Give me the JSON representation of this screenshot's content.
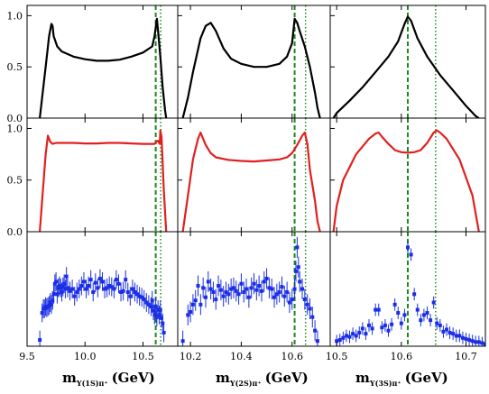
{
  "chart_data": {
    "type": "line",
    "grid": false,
    "yticks": [
      "0.0",
      "0.5",
      "1.0"
    ],
    "x_axis_labels": [
      {
        "main": "m",
        "sub": "Υ(1S)π⁺",
        "unit": "(GeV)"
      },
      {
        "main": "m",
        "sub": "Υ(2S)π⁺",
        "unit": "(GeV)"
      },
      {
        "main": "m",
        "sub": "Υ(3S)π⁺",
        "unit": "(GeV)"
      }
    ],
    "columns": [
      {
        "xlim": [
          9.5,
          10.8
        ],
        "xticks": [
          9.5,
          10.0,
          10.5
        ],
        "xtick_labels": [
          "9.5",
          "10.0",
          "10.5"
        ],
        "vlines": [
          {
            "x": 10.61,
            "style": "dashed"
          },
          {
            "x": 10.653,
            "style": "dotted"
          }
        ]
      },
      {
        "xlim": [
          10.15,
          10.75
        ],
        "xticks": [
          10.2,
          10.4,
          10.6
        ],
        "xtick_labels": [
          "10.2",
          "10.4",
          "10.6"
        ],
        "vlines": [
          {
            "x": 10.61,
            "style": "dashed"
          },
          {
            "x": 10.653,
            "style": "dotted"
          }
        ]
      },
      {
        "xlim": [
          10.49,
          10.73
        ],
        "xticks": [
          10.5,
          10.6,
          10.7
        ],
        "xtick_labels": [
          "10.5",
          "10.6",
          "10.7"
        ],
        "vlines": [
          {
            "x": 10.61,
            "style": "dashed"
          },
          {
            "x": 10.653,
            "style": "dotted"
          }
        ]
      }
    ],
    "rows": [
      {
        "color": "#000000",
        "ylim": [
          0,
          1.1
        ],
        "curves": [
          {
            "x": [
              9.61,
              9.63,
              9.66,
              9.69,
              9.71,
              9.72,
              9.73,
              9.76,
              9.8,
              9.9,
              10.0,
              10.1,
              10.2,
              10.3,
              10.4,
              10.5,
              10.58,
              10.6,
              10.62,
              10.63,
              10.65,
              10.67,
              10.69,
              10.7
            ],
            "y": [
              0.0,
              0.2,
              0.5,
              0.8,
              0.92,
              0.9,
              0.8,
              0.7,
              0.65,
              0.6,
              0.575,
              0.56,
              0.56,
              0.57,
              0.6,
              0.64,
              0.7,
              0.8,
              0.97,
              0.85,
              0.6,
              0.3,
              0.08,
              0.0
            ]
          },
          {
            "x": [
              10.17,
              10.19,
              10.21,
              10.24,
              10.26,
              10.28,
              10.3,
              10.33,
              10.36,
              10.4,
              10.45,
              10.5,
              10.55,
              10.58,
              10.6,
              10.61,
              10.62,
              10.63,
              10.65,
              10.67,
              10.69,
              10.7,
              10.71
            ],
            "y": [
              0.0,
              0.2,
              0.45,
              0.78,
              0.9,
              0.93,
              0.85,
              0.68,
              0.58,
              0.53,
              0.5,
              0.5,
              0.53,
              0.6,
              0.73,
              0.97,
              0.93,
              0.85,
              0.7,
              0.5,
              0.25,
              0.1,
              0.0
            ]
          },
          {
            "x": [
              10.495,
              10.5,
              10.52,
              10.54,
              10.56,
              10.58,
              10.595,
              10.605,
              10.61,
              10.615,
              10.625,
              10.64,
              10.66,
              10.68,
              10.7,
              10.715,
              10.72
            ],
            "y": [
              0.0,
              0.05,
              0.17,
              0.3,
              0.45,
              0.6,
              0.75,
              0.92,
              0.99,
              0.95,
              0.78,
              0.6,
              0.42,
              0.27,
              0.12,
              0.02,
              0.0
            ]
          }
        ]
      },
      {
        "color": "#e02020",
        "ylim": [
          0,
          1.1
        ],
        "curves": [
          {
            "x": [
              9.61,
              9.63,
              9.66,
              9.68,
              9.7,
              9.72,
              9.75,
              9.8,
              9.9,
              10.0,
              10.1,
              10.2,
              10.3,
              10.4,
              10.5,
              10.58,
              10.6,
              10.615,
              10.63,
              10.645,
              10.65,
              10.66,
              10.68,
              10.7
            ],
            "y": [
              0.0,
              0.3,
              0.75,
              0.93,
              0.87,
              0.85,
              0.86,
              0.86,
              0.86,
              0.855,
              0.855,
              0.86,
              0.86,
              0.855,
              0.85,
              0.85,
              0.85,
              0.87,
              0.88,
              0.85,
              0.98,
              0.92,
              0.4,
              0.0
            ]
          },
          {
            "x": [
              10.17,
              10.19,
              10.21,
              10.23,
              10.24,
              10.26,
              10.28,
              10.3,
              10.35,
              10.4,
              10.45,
              10.5,
              10.55,
              10.58,
              10.6,
              10.62,
              10.64,
              10.65,
              10.66,
              10.67,
              10.69,
              10.7,
              10.71
            ],
            "y": [
              0.0,
              0.35,
              0.7,
              0.9,
              0.96,
              0.84,
              0.76,
              0.72,
              0.695,
              0.685,
              0.68,
              0.69,
              0.7,
              0.72,
              0.76,
              0.84,
              0.93,
              0.96,
              0.85,
              0.6,
              0.3,
              0.1,
              0.0
            ]
          },
          {
            "x": [
              10.495,
              10.5,
              10.51,
              10.53,
              10.55,
              10.56,
              10.565,
              10.57,
              10.58,
              10.59,
              10.6,
              10.61,
              10.62,
              10.63,
              10.64,
              10.65,
              10.655,
              10.66,
              10.67,
              10.69,
              10.71,
              10.72
            ],
            "y": [
              0.0,
              0.25,
              0.5,
              0.75,
              0.9,
              0.95,
              0.96,
              0.92,
              0.85,
              0.79,
              0.77,
              0.765,
              0.77,
              0.79,
              0.86,
              0.96,
              0.98,
              0.96,
              0.9,
              0.7,
              0.35,
              0.0
            ]
          }
        ]
      },
      {
        "color": "#1a2ee6",
        "ylim": [
          0,
          1.1
        ],
        "points": [
          {
            "x": [
              9.61,
              9.63,
              9.64,
              9.65,
              9.66,
              9.67,
              9.68,
              9.69,
              9.7,
              9.71,
              9.72,
              9.73,
              9.74,
              9.75,
              9.76,
              9.77,
              9.78,
              9.79,
              9.8,
              9.81,
              9.82,
              9.83,
              9.84,
              9.85,
              9.87,
              9.89,
              9.91,
              9.93,
              9.95,
              9.97,
              9.99,
              10.01,
              10.03,
              10.05,
              10.07,
              10.09,
              10.11,
              10.13,
              10.15,
              10.17,
              10.19,
              10.21,
              10.23,
              10.25,
              10.27,
              10.29,
              10.31,
              10.33,
              10.35,
              10.37,
              10.39,
              10.41,
              10.43,
              10.45,
              10.47,
              10.49,
              10.51,
              10.53,
              10.55,
              10.57,
              10.58,
              10.59,
              10.6,
              10.61,
              10.62,
              10.63,
              10.64,
              10.65,
              10.66,
              10.67,
              10.68
            ],
            "y": [
              0.06,
              0.32,
              0.36,
              0.36,
              0.38,
              0.37,
              0.38,
              0.39,
              0.42,
              0.4,
              0.44,
              0.5,
              0.6,
              0.62,
              0.5,
              0.56,
              0.58,
              0.56,
              0.52,
              0.57,
              0.6,
              0.55,
              0.67,
              0.56,
              0.53,
              0.55,
              0.48,
              0.52,
              0.55,
              0.58,
              0.62,
              0.55,
              0.58,
              0.64,
              0.52,
              0.61,
              0.56,
              0.65,
              0.62,
              0.55,
              0.56,
              0.58,
              0.57,
              0.55,
              0.64,
              0.6,
              0.52,
              0.53,
              0.64,
              0.52,
              0.48,
              0.55,
              0.52,
              0.5,
              0.48,
              0.47,
              0.45,
              0.42,
              0.4,
              0.38,
              0.44,
              0.34,
              0.3,
              0.38,
              0.28,
              0.35,
              0.3,
              0.35,
              0.27,
              0.22,
              0.13
            ],
            "err": 0.09
          },
          {
            "x": [
              10.17,
              10.19,
              10.2,
              10.21,
              10.22,
              10.23,
              10.24,
              10.25,
              10.26,
              10.27,
              10.28,
              10.29,
              10.3,
              10.31,
              10.32,
              10.33,
              10.34,
              10.35,
              10.36,
              10.37,
              10.38,
              10.39,
              10.4,
              10.41,
              10.42,
              10.43,
              10.44,
              10.45,
              10.46,
              10.47,
              10.48,
              10.49,
              10.5,
              10.51,
              10.52,
              10.53,
              10.54,
              10.55,
              10.56,
              10.57,
              10.58,
              10.59,
              10.6,
              10.61,
              10.615,
              10.62,
              10.625,
              10.63,
              10.64,
              10.65,
              10.66,
              10.67,
              10.68,
              10.69,
              10.7
            ],
            "y": [
              0.05,
              0.3,
              0.33,
              0.4,
              0.44,
              0.58,
              0.4,
              0.56,
              0.47,
              0.62,
              0.55,
              0.52,
              0.45,
              0.58,
              0.54,
              0.48,
              0.52,
              0.5,
              0.55,
              0.56,
              0.53,
              0.5,
              0.6,
              0.52,
              0.55,
              0.47,
              0.56,
              0.6,
              0.54,
              0.58,
              0.53,
              0.62,
              0.65,
              0.56,
              0.55,
              0.47,
              0.5,
              0.52,
              0.57,
              0.48,
              0.52,
              0.42,
              0.45,
              0.55,
              0.72,
              0.95,
              0.76,
              0.62,
              0.55,
              0.45,
              0.4,
              0.36,
              0.28,
              0.15,
              0.05
            ],
            "err": 0.1
          },
          {
            "x": [
              10.5,
              10.505,
              10.51,
              10.515,
              10.52,
              10.525,
              10.53,
              10.535,
              10.54,
              10.545,
              10.55,
              10.555,
              10.56,
              10.565,
              10.57,
              10.575,
              10.58,
              10.585,
              10.59,
              10.595,
              10.6,
              10.605,
              10.61,
              10.615,
              10.62,
              10.625,
              10.63,
              10.635,
              10.64,
              10.645,
              10.65,
              10.655,
              10.66,
              10.665,
              10.67,
              10.675,
              10.68,
              10.685,
              10.69,
              10.695,
              10.7,
              10.705,
              10.71,
              10.715,
              10.72,
              10.725,
              10.73
            ],
            "y": [
              0.05,
              0.06,
              0.08,
              0.1,
              0.09,
              0.12,
              0.1,
              0.13,
              0.17,
              0.12,
              0.2,
              0.17,
              0.35,
              0.35,
              0.18,
              0.2,
              0.15,
              0.21,
              0.4,
              0.32,
              0.22,
              0.3,
              0.95,
              0.88,
              0.5,
              0.35,
              0.25,
              0.3,
              0.32,
              0.25,
              0.42,
              0.22,
              0.2,
              0.14,
              0.16,
              0.13,
              0.12,
              0.1,
              0.1,
              0.08,
              0.07,
              0.06,
              0.05,
              0.04,
              0.04,
              0.03,
              0.02
            ],
            "err": 0.06
          }
        ]
      }
    ]
  }
}
